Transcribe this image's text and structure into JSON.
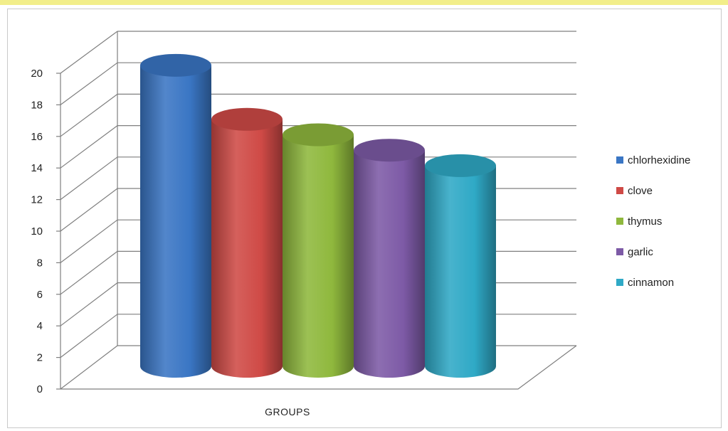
{
  "chart_data": {
    "type": "bar",
    "categories": [
      "GROUPS"
    ],
    "xlabel": "GROUPS",
    "ylabel": "",
    "ylim": [
      0,
      20
    ],
    "yticks": [
      0,
      2,
      4,
      6,
      8,
      10,
      12,
      14,
      16,
      18,
      20
    ],
    "grid": true,
    "legend_position": "right",
    "series": [
      {
        "name": "chlorhexidine",
        "values": [
          19.5
        ],
        "color": "#3a76c4"
      },
      {
        "name": "clove",
        "values": [
          16
        ],
        "color": "#cf4a46"
      },
      {
        "name": "thymus",
        "values": [
          15
        ],
        "color": "#8fb83d"
      },
      {
        "name": "garlic",
        "values": [
          14
        ],
        "color": "#7d5aa6"
      },
      {
        "name": "cinnamon",
        "values": [
          13
        ],
        "color": "#2fa9c6"
      }
    ]
  }
}
